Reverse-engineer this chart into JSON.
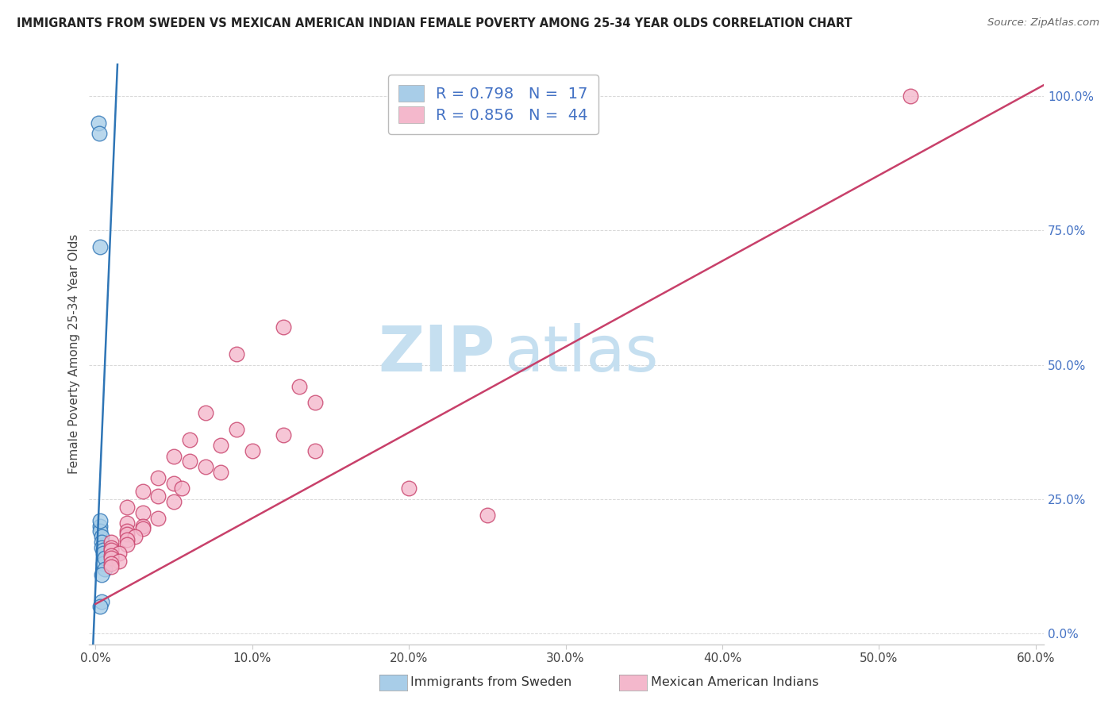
{
  "title": "IMMIGRANTS FROM SWEDEN VS MEXICAN AMERICAN INDIAN FEMALE POVERTY AMONG 25-34 YEAR OLDS CORRELATION CHART",
  "source": "Source: ZipAtlas.com",
  "ylabel": "Female Poverty Among 25-34 Year Olds",
  "legend_label_1": "Immigrants from Sweden",
  "legend_label_2": "Mexican American Indians",
  "r1": 0.798,
  "n1": 17,
  "r2": 0.856,
  "n2": 44,
  "color_blue": "#a8cde8",
  "color_pink": "#f4b8cc",
  "line_color_blue": "#2e75b6",
  "line_color_pink": "#c8406a",
  "xlim_min": -0.004,
  "xlim_max": 0.605,
  "ylim_min": -0.02,
  "ylim_max": 1.06,
  "xticks": [
    0.0,
    0.1,
    0.2,
    0.3,
    0.4,
    0.5,
    0.6
  ],
  "yticks_right": [
    0.0,
    0.25,
    0.5,
    0.75,
    1.0
  ],
  "watermark_zip": "ZIP",
  "watermark_atlas": "atlas",
  "sweden_x": [
    0.002,
    0.0025,
    0.003,
    0.003,
    0.003,
    0.004,
    0.004,
    0.004,
    0.005,
    0.005,
    0.005,
    0.006,
    0.006,
    0.003,
    0.004,
    0.004,
    0.003
  ],
  "sweden_y": [
    0.95,
    0.93,
    0.72,
    0.2,
    0.19,
    0.18,
    0.17,
    0.16,
    0.155,
    0.15,
    0.13,
    0.14,
    0.12,
    0.21,
    0.11,
    0.06,
    0.05
  ],
  "mexico_x": [
    0.52,
    0.12,
    0.09,
    0.13,
    0.14,
    0.07,
    0.09,
    0.12,
    0.06,
    0.08,
    0.1,
    0.05,
    0.06,
    0.07,
    0.08,
    0.04,
    0.05,
    0.055,
    0.03,
    0.04,
    0.05,
    0.02,
    0.03,
    0.04,
    0.02,
    0.03,
    0.03,
    0.02,
    0.02,
    0.025,
    0.02,
    0.01,
    0.02,
    0.01,
    0.01,
    0.015,
    0.01,
    0.01,
    0.015,
    0.01,
    0.01,
    0.14,
    0.2,
    0.25
  ],
  "mexico_y": [
    1.0,
    0.57,
    0.52,
    0.46,
    0.43,
    0.41,
    0.38,
    0.37,
    0.36,
    0.35,
    0.34,
    0.33,
    0.32,
    0.31,
    0.3,
    0.29,
    0.28,
    0.27,
    0.265,
    0.255,
    0.245,
    0.235,
    0.225,
    0.215,
    0.205,
    0.2,
    0.195,
    0.19,
    0.185,
    0.18,
    0.175,
    0.17,
    0.165,
    0.16,
    0.155,
    0.15,
    0.145,
    0.14,
    0.135,
    0.13,
    0.125,
    0.34,
    0.27,
    0.22
  ],
  "blue_line_x": [
    -0.002,
    0.014
  ],
  "blue_line_y": [
    -0.05,
    1.06
  ],
  "pink_line_x": [
    0.0,
    0.605
  ],
  "pink_line_y": [
    0.055,
    1.02
  ],
  "grid_color": "#d8d8d8",
  "axis_color": "#cccccc",
  "right_tick_color": "#4472c4",
  "title_color": "#222222",
  "source_color": "#666666"
}
